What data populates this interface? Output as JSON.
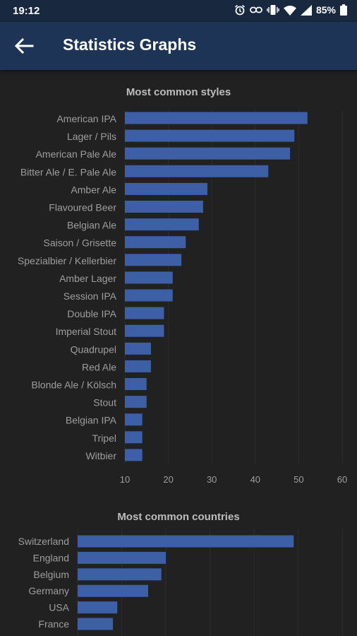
{
  "status_bar": {
    "time": "19:12",
    "battery": "85%",
    "icons": [
      "alarm-icon",
      "link-icon",
      "vibrate-icon",
      "wifi-icon",
      "signal-icon",
      "battery-icon"
    ]
  },
  "app_bar": {
    "title": "Statistics Graphs",
    "back_icon": "arrow-left-icon"
  },
  "colors": {
    "bar": "#3d5fa5",
    "background": "#212121",
    "app_bar": "#1d3457",
    "status_bar": "#17283f"
  },
  "chart_data": [
    {
      "type": "bar",
      "orientation": "horizontal",
      "title": "Most common styles",
      "categories": [
        "American IPA",
        "Lager / Pils",
        "American Pale Ale",
        "Bitter Ale / E. Pale Ale",
        "Amber Ale",
        "Flavoured Beer",
        "Belgian Ale",
        "Saison / Grisette",
        "Spezialbier / Kellerbier",
        "Amber Lager",
        "Session IPA",
        "Double IPA",
        "Imperial Stout",
        "Quadrupel",
        "Red Ale",
        "Blonde Ale / Kölsch",
        "Stout",
        "Belgian IPA",
        "Tripel",
        "Witbier"
      ],
      "values": [
        52,
        49,
        48,
        43,
        29,
        28,
        27,
        24,
        23,
        21,
        21,
        19,
        19,
        16,
        16,
        15,
        15,
        14,
        14,
        14
      ],
      "xlim": [
        10,
        60
      ],
      "xticks": [
        "10",
        "20",
        "30",
        "40",
        "50",
        "60"
      ],
      "grid": true
    },
    {
      "type": "bar",
      "orientation": "horizontal",
      "title": "Most common countries",
      "categories": [
        "Switzerland",
        "England",
        "Belgium",
        "Germany",
        "USA",
        "France"
      ],
      "values": [
        49,
        20,
        19,
        16,
        9,
        8
      ],
      "grid": true
    }
  ]
}
